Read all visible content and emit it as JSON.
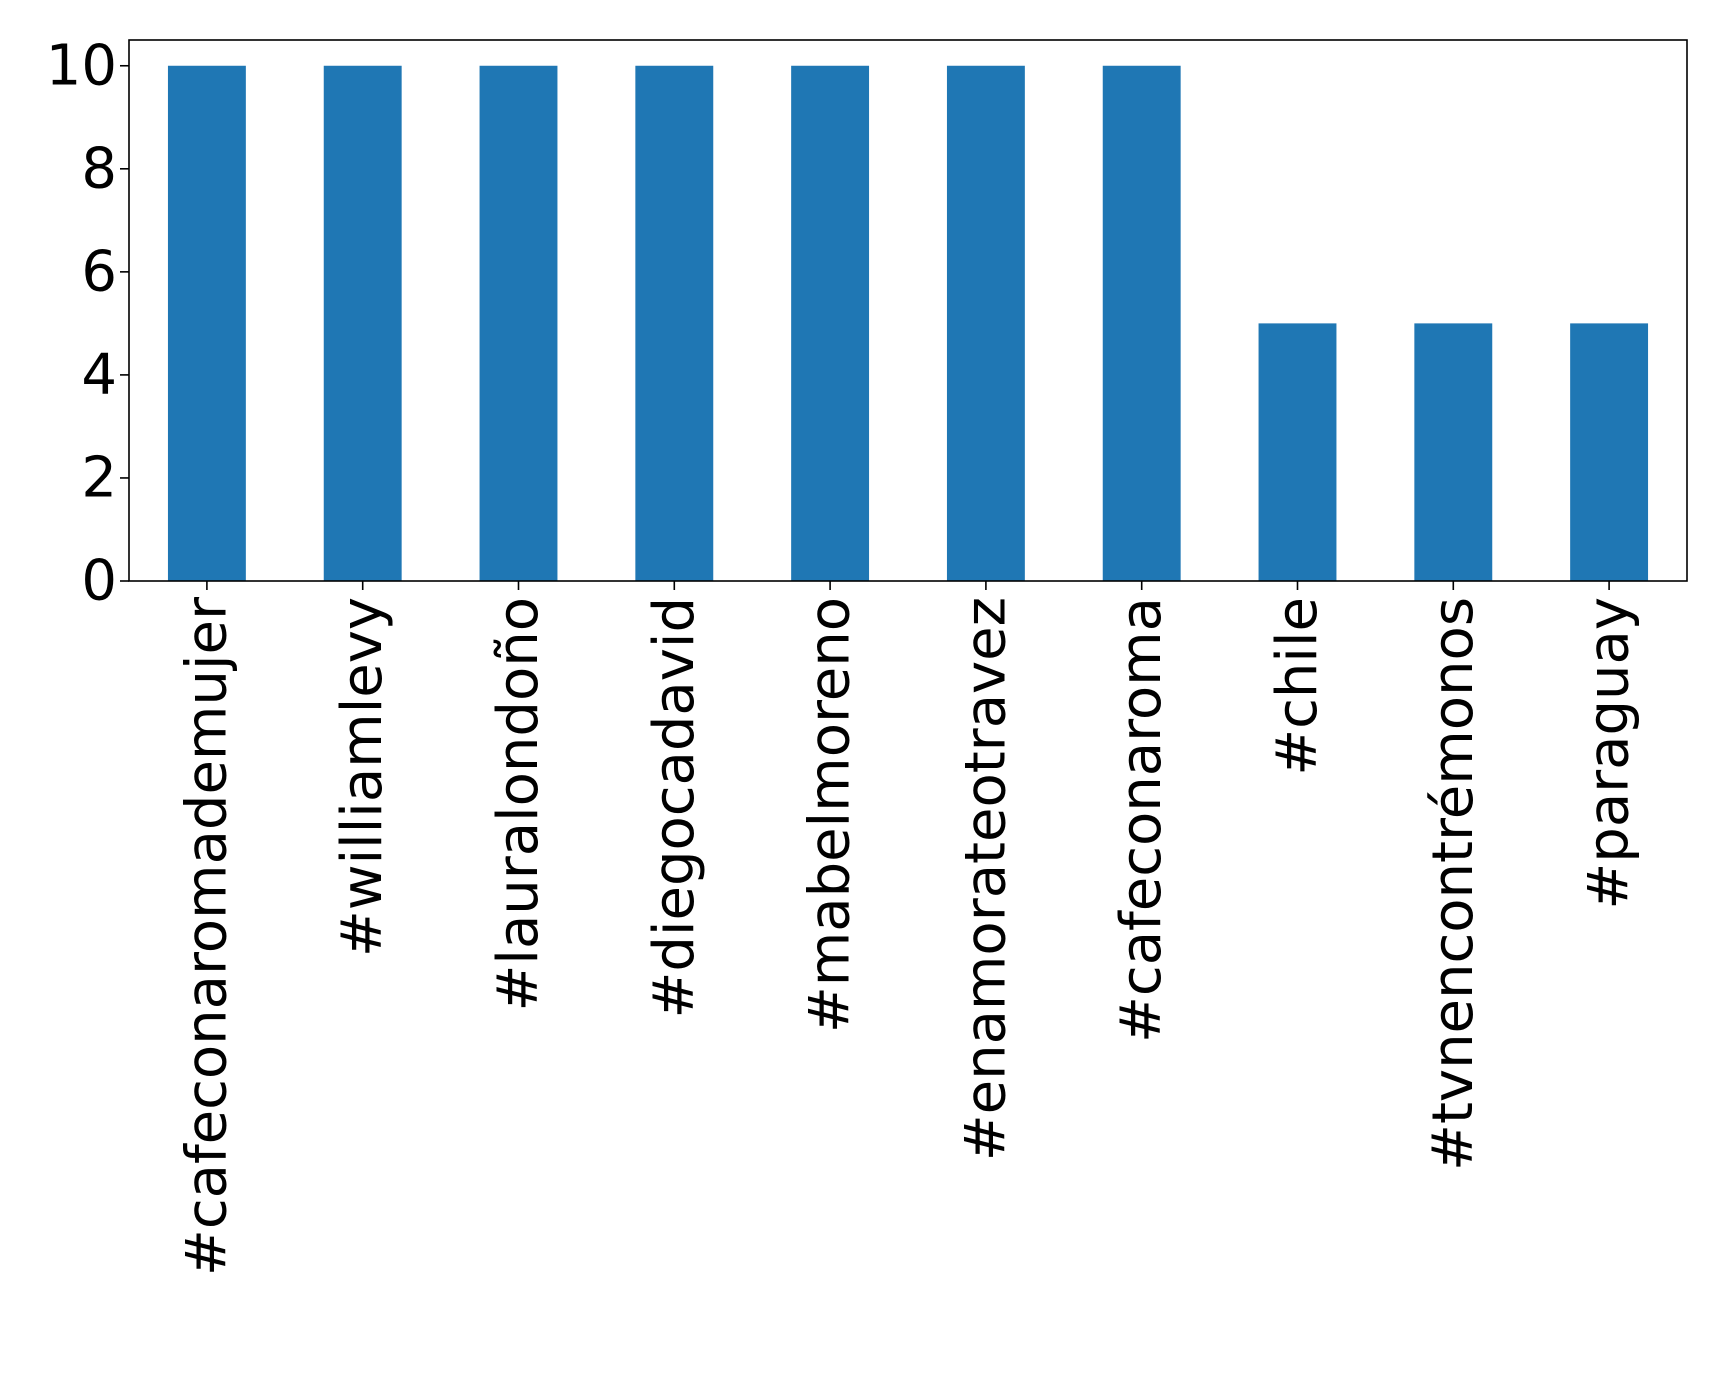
{
  "chart_data": {
    "type": "bar",
    "title": "",
    "xlabel": "",
    "ylabel": "",
    "categories": [
      "#cafeconaromademujer",
      "#williamlevy",
      "#lauralondoño",
      "#diegocadavid",
      "#mabelmoreno",
      "#enamorateotravez",
      "#cafeconaroma",
      "#chile",
      "#tvnencontrémonos",
      "#paraguay"
    ],
    "values": [
      10,
      10,
      10,
      10,
      10,
      10,
      10,
      5,
      5,
      5
    ],
    "ylim": [
      0,
      10.5
    ],
    "yticks": [
      0,
      2,
      4,
      6,
      8,
      10
    ],
    "bar_color": "#1f77b4",
    "grid": false,
    "legend": "none"
  }
}
